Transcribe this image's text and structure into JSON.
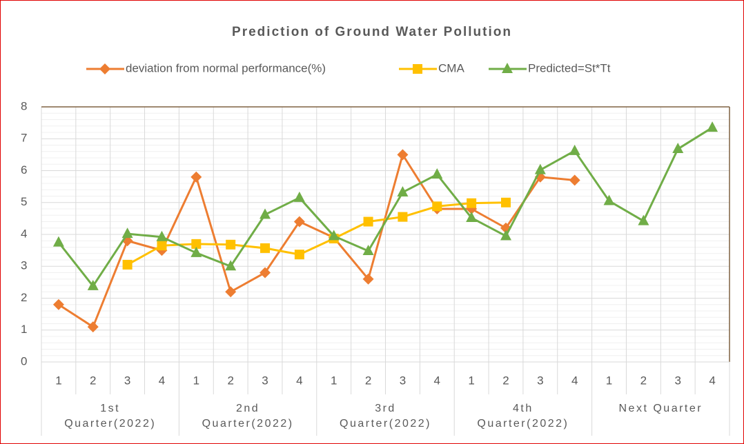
{
  "chart_data": {
    "type": "line",
    "title": "Prediction of Ground Water Pollution",
    "categories": [
      "1",
      "2",
      "3",
      "4",
      "1",
      "2",
      "3",
      "4",
      "1",
      "2",
      "3",
      "4",
      "1",
      "2",
      "3",
      "4",
      "1",
      "2",
      "3",
      "4"
    ],
    "groups": [
      "1st Quarter(2022)",
      "2nd Quarter(2022)",
      "3rd Quarter(2022)",
      "4th Quarter(2022)",
      "Next Quarter"
    ],
    "series": [
      {
        "name": "deviation from normal performance(%)",
        "color": "#ed7d31",
        "marker": "diamond",
        "values": [
          1.8,
          1.1,
          3.8,
          3.5,
          5.8,
          2.2,
          2.8,
          4.4,
          3.9,
          2.6,
          6.5,
          4.8,
          4.8,
          4.2,
          5.8,
          5.7,
          null,
          null,
          null,
          null
        ]
      },
      {
        "name": "CMA",
        "color": "#ffc000",
        "marker": "square",
        "values": [
          null,
          null,
          3.05,
          3.65,
          3.7,
          3.68,
          3.57,
          3.37,
          3.87,
          4.4,
          4.55,
          4.88,
          4.98,
          5.0,
          null,
          null,
          null,
          null,
          null,
          null
        ]
      },
      {
        "name": "Predicted=St*Tt",
        "color": "#70ad47",
        "marker": "triangle",
        "values": [
          3.75,
          2.38,
          4.02,
          3.92,
          3.42,
          3.0,
          4.62,
          5.15,
          3.95,
          3.48,
          5.32,
          5.88,
          4.52,
          3.95,
          6.02,
          6.62,
          5.05,
          4.42,
          6.68,
          7.35
        ]
      }
    ],
    "ylim": [
      0,
      8
    ],
    "yticks": [
      0,
      1,
      2,
      3,
      4,
      5,
      6,
      7,
      8
    ],
    "grid": true,
    "legend": "top"
  }
}
